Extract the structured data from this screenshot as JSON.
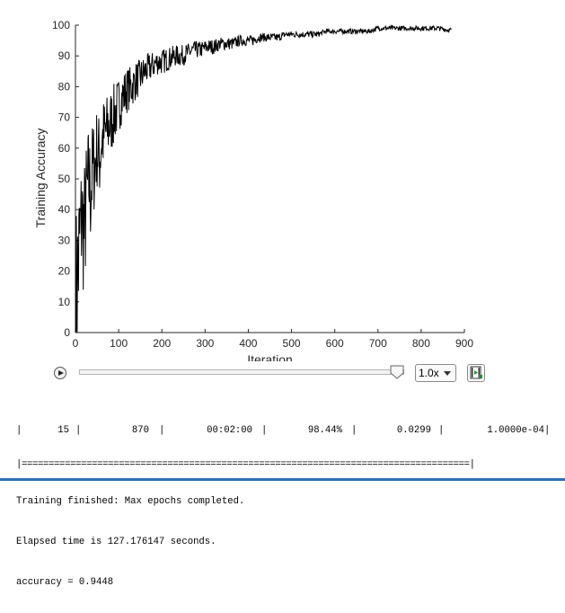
{
  "chart_data": {
    "type": "line",
    "xlabel": "Iteration",
    "ylabel": "Training Accuracy",
    "xlim": [
      0,
      900
    ],
    "ylim": [
      0,
      100
    ],
    "xticks": [
      0,
      100,
      200,
      300,
      400,
      500,
      600,
      700,
      800,
      900
    ],
    "yticks": [
      0,
      10,
      20,
      30,
      40,
      50,
      60,
      70,
      80,
      90,
      100
    ],
    "grid": false,
    "series": [
      {
        "color": "#000000",
        "x": [
          1,
          5,
          10,
          15,
          20,
          25,
          30,
          35,
          40,
          45,
          50,
          55,
          60,
          65,
          70,
          80,
          90,
          100,
          110,
          120,
          130,
          140,
          150,
          160,
          170,
          180,
          190,
          200,
          215,
          230,
          245,
          260,
          275,
          290,
          305,
          320,
          335,
          350,
          365,
          380,
          395,
          410,
          425,
          440,
          455,
          470,
          485,
          500,
          520,
          540,
          560,
          580,
          600,
          620,
          640,
          660,
          680,
          700,
          720,
          740,
          760,
          780,
          800,
          820,
          840,
          860,
          870
        ],
        "y": [
          10,
          18,
          30,
          38,
          32,
          42,
          50,
          46,
          53,
          55,
          60,
          56,
          62,
          64,
          65,
          68,
          71,
          74,
          77,
          79,
          80,
          82,
          83,
          85,
          86,
          87,
          88,
          88,
          89,
          90,
          90,
          91,
          92,
          92,
          93,
          93,
          94,
          94,
          94,
          95,
          95,
          95,
          96,
          96,
          96,
          96,
          97,
          97,
          97,
          97,
          97,
          98,
          98,
          98,
          98,
          98,
          98,
          99,
          99,
          99,
          99,
          99,
          99,
          99,
          99,
          98.5,
          98.44
        ]
      }
    ]
  },
  "player": {
    "speed": "1.0x",
    "progress": 1.0,
    "icons": [
      "play-icon",
      "slider-thumb-icon",
      "chevron-down-icon",
      "export-video-icon"
    ]
  },
  "console": {
    "row": [
      "15",
      "870",
      "00:02:00",
      "98.44%",
      "0.0299",
      "1.0000e-04"
    ],
    "separator": "|===================================================================================|",
    "finished": "Training finished: Max epochs completed.",
    "elapsed": "Elapsed time is 127.176147 seconds.",
    "accuracy": "accuracy = 0.9448"
  },
  "colors": {
    "accent_rule": "#2c6fb5",
    "line": "#000000"
  }
}
